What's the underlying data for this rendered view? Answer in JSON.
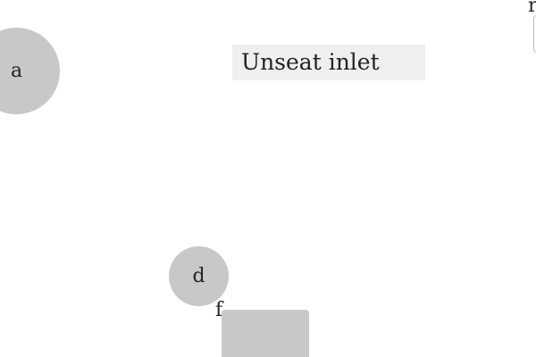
{
  "nodes": {
    "a": {
      "label": "a"
    },
    "d": {
      "label": "d"
    }
  },
  "label_box": {
    "text": "Unseat inlet"
  },
  "loose_labels": {
    "f": "f",
    "r": "r"
  },
  "colors": {
    "node_fill": "#c8c8c8",
    "label_box_fill": "#efefef",
    "text": "#222222",
    "background": "#ffffff"
  }
}
